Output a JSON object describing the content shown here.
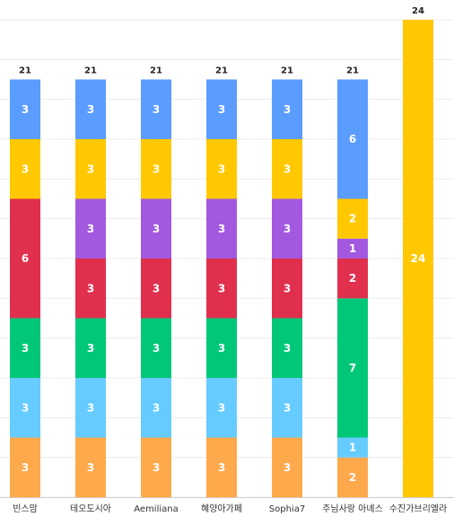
{
  "chart_data": {
    "type": "bar",
    "stacked": true,
    "title": "",
    "xlabel": "",
    "ylabel": "",
    "ylim": [
      0,
      24
    ],
    "grid": true,
    "categories": [
      "빈스맘",
      "테오도시아",
      "Aemiliana",
      "혜양아가페",
      "Sophia7",
      "주님사랑 아녜스",
      "수진가브리엘라"
    ],
    "totals": [
      21,
      21,
      21,
      21,
      21,
      21,
      24
    ],
    "series": [
      {
        "color": "#ffa94d",
        "values": [
          3,
          3,
          3,
          3,
          3,
          2,
          0
        ]
      },
      {
        "color": "#66ccff",
        "values": [
          3,
          3,
          3,
          3,
          3,
          1,
          0
        ]
      },
      {
        "color": "#00c878",
        "values": [
          3,
          3,
          3,
          3,
          3,
          7,
          0
        ]
      },
      {
        "color": "#e0304e",
        "values": [
          6,
          3,
          3,
          3,
          3,
          2,
          0
        ]
      },
      {
        "color": "#a259e0",
        "values": [
          0,
          3,
          3,
          3,
          3,
          1,
          0
        ]
      },
      {
        "color": "#ffc800",
        "values": [
          3,
          3,
          3,
          3,
          3,
          2,
          24
        ]
      },
      {
        "color": "#5b9cff",
        "values": [
          3,
          3,
          3,
          3,
          3,
          6,
          0
        ]
      }
    ]
  }
}
